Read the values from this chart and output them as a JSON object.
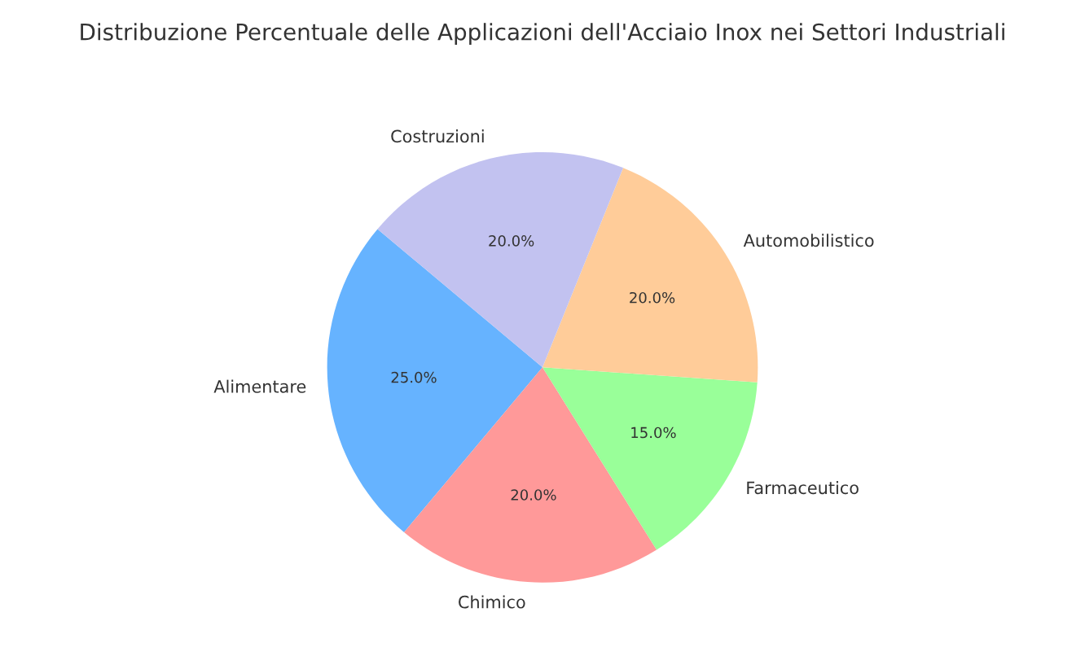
{
  "chart_data": {
    "type": "pie",
    "title": "Distribuzione Percentuale delle Applicazioni dell'Acciaio Inox nei Settori Industriali",
    "categories": [
      "Alimentare",
      "Chimico",
      "Farmaceutico",
      "Automobilistico",
      "Costruzioni"
    ],
    "values": [
      25,
      20,
      15,
      20,
      20
    ],
    "colors": [
      "#66b3ff",
      "#ff9999",
      "#99ff99",
      "#ffcc99",
      "#c2c2f0"
    ],
    "value_labels": [
      "25.0%",
      "20.0%",
      "15.0%",
      "20.0%",
      "20.0%"
    ]
  }
}
